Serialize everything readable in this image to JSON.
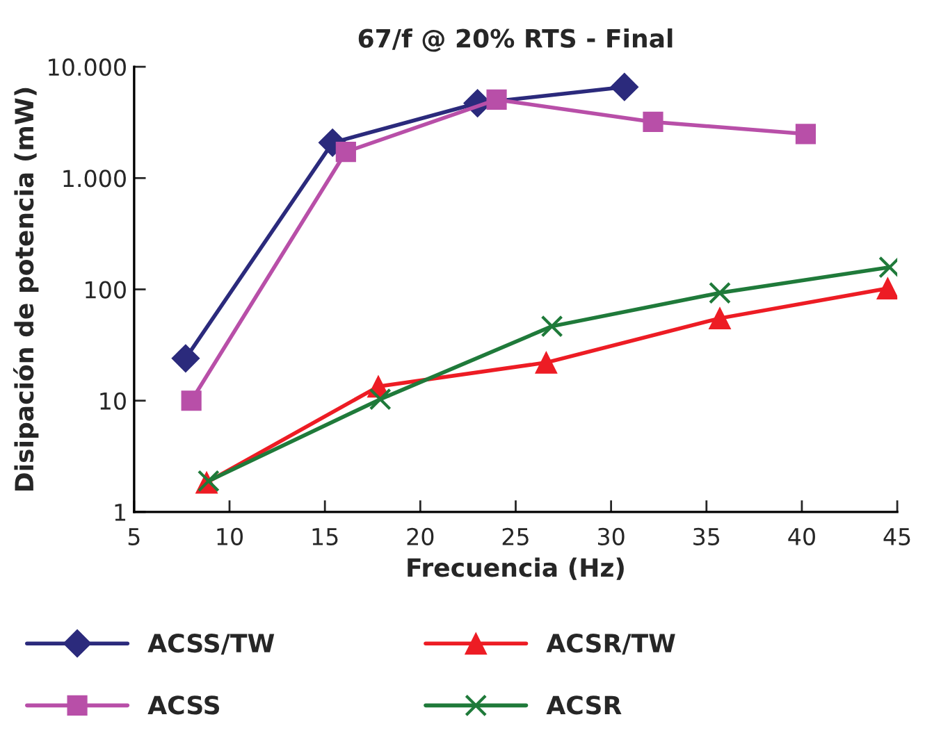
{
  "chart_data": {
    "type": "line",
    "title": "67/f @ 20% RTS - Final",
    "xlabel": "Frecuencia (Hz)",
    "ylabel": "Disipación de potencia (mW)",
    "log": "y",
    "xlim": [
      5,
      45
    ],
    "xticks": [
      5,
      10,
      15,
      20,
      25,
      30,
      35,
      40,
      45
    ],
    "ylim": [
      1,
      10000
    ],
    "yticks": [
      1,
      10,
      100,
      {
        "value": 1000,
        "label": "1.000"
      },
      {
        "value": 10000,
        "label": "10.000"
      }
    ],
    "grid": false,
    "legend": "bottom",
    "series": [
      {
        "name": "ACSS/TW",
        "color": "#2b2a7c",
        "marker": "diamond",
        "x": [
          7.7,
          15.4,
          23.0,
          30.7
        ],
        "values": [
          24,
          2080,
          4710,
          6580
        ]
      },
      {
        "name": "ACSS",
        "color": "#b84fa8",
        "marker": "square",
        "x": [
          8.0,
          16.1,
          24.0,
          32.2,
          40.2
        ],
        "values": [
          10,
          1720,
          5070,
          3200,
          2490
        ]
      },
      {
        "name": "ACSR/TW",
        "color": "#ed1c24",
        "marker": "triangle",
        "x": [
          8.8,
          17.8,
          26.6,
          35.7,
          44.5
        ],
        "values": [
          1.84,
          13.4,
          22,
          55,
          102
        ]
      },
      {
        "name": "ACSR",
        "color": "#1f7a3a",
        "marker": "cross",
        "x": [
          8.9,
          17.9,
          26.9,
          35.7,
          44.6
        ],
        "values": [
          1.9,
          10.3,
          46.6,
          93,
          158
        ]
      }
    ]
  }
}
